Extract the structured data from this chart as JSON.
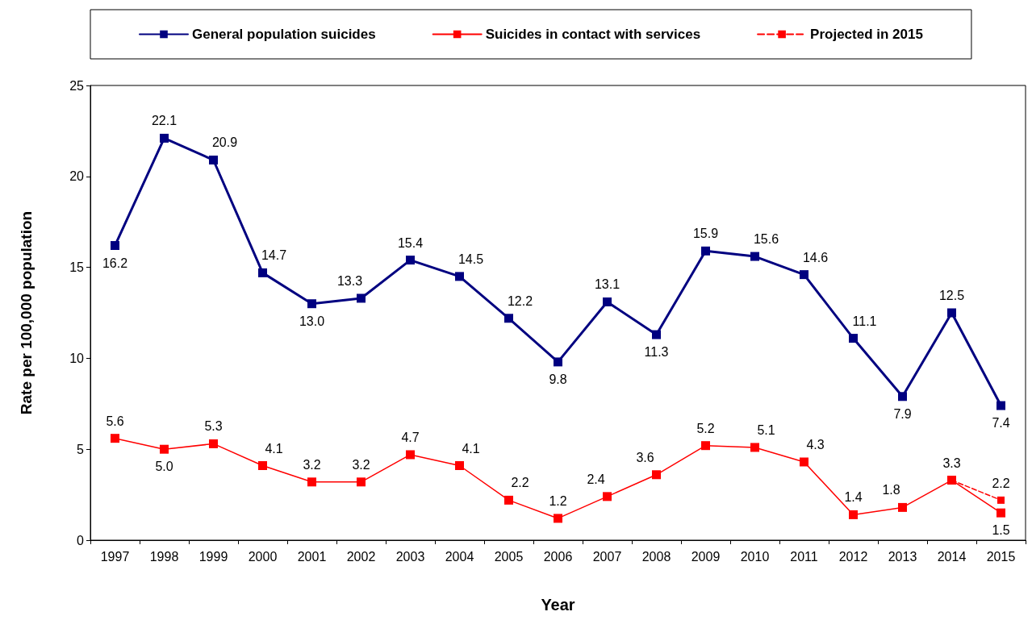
{
  "chart_data": {
    "type": "line",
    "xlabel": "Year",
    "ylabel": "Rate per 100,000 population",
    "categories": [
      "1997",
      "1998",
      "1999",
      "2000",
      "2001",
      "2002",
      "2003",
      "2004",
      "2005",
      "2006",
      "2007",
      "2008",
      "2009",
      "2010",
      "2011",
      "2012",
      "2013",
      "2014",
      "2015"
    ],
    "series": [
      {
        "name": "General population suicides",
        "color": "#000080",
        "values": [
          16.2,
          22.1,
          20.9,
          14.7,
          13.0,
          13.3,
          15.4,
          14.5,
          12.2,
          9.8,
          13.1,
          11.3,
          15.9,
          15.6,
          14.6,
          11.1,
          7.9,
          12.5,
          7.4
        ],
        "value_labels": [
          "16.2",
          "22.1",
          "20.9",
          "14.7",
          "13.0",
          "13.3",
          "15.4",
          "14.5",
          "12.2",
          "9.8",
          "13.1",
          "11.3",
          "15.9",
          "15.6",
          "14.6",
          "11.1",
          "7.9",
          "12.5",
          "7.4"
        ]
      },
      {
        "name": "Suicides in contact with services",
        "color": "#ff0000",
        "values": [
          5.6,
          5.0,
          5.3,
          4.1,
          3.2,
          3.2,
          4.7,
          4.1,
          2.2,
          1.2,
          2.4,
          3.6,
          5.2,
          5.1,
          4.3,
          1.4,
          1.8,
          3.3,
          1.5
        ],
        "value_labels": [
          "5.6",
          "5.0",
          "5.3",
          "4.1",
          "3.2",
          "3.2",
          "4.7",
          "4.1",
          "2.2",
          "1.2",
          "2.4",
          "3.6",
          "5.2",
          "5.1",
          "4.3",
          "1.4",
          "1.8",
          "3.3",
          "1.5"
        ]
      },
      {
        "name": "Projected in 2015",
        "color": "#ff0000",
        "line_style": "dashed",
        "values": [
          null,
          null,
          null,
          null,
          null,
          null,
          null,
          null,
          null,
          null,
          null,
          null,
          null,
          null,
          null,
          null,
          null,
          3.3,
          2.2
        ],
        "value_labels": [
          null,
          null,
          null,
          null,
          null,
          null,
          null,
          null,
          null,
          null,
          null,
          null,
          null,
          null,
          null,
          null,
          null,
          null,
          "2.2"
        ]
      }
    ],
    "ylim": [
      0,
      25
    ],
    "yticks": [
      0,
      5,
      10,
      15,
      20,
      25
    ],
    "marker": "square",
    "legend": "top",
    "grid": false
  }
}
